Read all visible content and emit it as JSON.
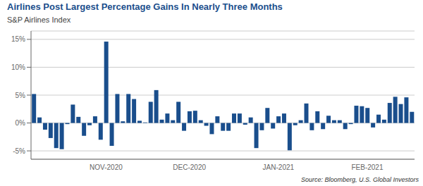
{
  "chart_data": {
    "type": "bar",
    "title": "Airlines Post Largest Percentage Gains In Nearly Three Months",
    "subtitle": "S&P Airlines Index",
    "source": "Source: Bloomberg, U.S. Global Investors",
    "color": "#1a4e8c",
    "categories": [
      null,
      null,
      null,
      null,
      null,
      null,
      null,
      null,
      null,
      null,
      null,
      null,
      null,
      "NOV-2020",
      null,
      null,
      null,
      null,
      null,
      null,
      null,
      null,
      null,
      null,
      null,
      null,
      null,
      null,
      "DEC-2020",
      null,
      null,
      null,
      null,
      null,
      null,
      null,
      null,
      null,
      null,
      null,
      null,
      null,
      null,
      null,
      "JAN-2021",
      null,
      null,
      null,
      null,
      null,
      null,
      null,
      null,
      null,
      null,
      null,
      null,
      null,
      null,
      null,
      "FEB-2021",
      null,
      null,
      null,
      null,
      null,
      null,
      null,
      null
    ],
    "values": [
      5.2,
      1.0,
      -1.2,
      -2.7,
      -4.5,
      -4.7,
      -0.2,
      3.3,
      1.1,
      -2.3,
      -0.4,
      1.2,
      -3.0,
      14.6,
      -4.1,
      5.2,
      0.3,
      5.2,
      4.3,
      0.4,
      0.1,
      3.8,
      5.9,
      0.6,
      1.7,
      0.5,
      3.8,
      -1.4,
      2.1,
      2.2,
      0.5,
      -0.5,
      -2.0,
      1.2,
      -1.4,
      -1.4,
      1.7,
      1.7,
      -0.3,
      1.0,
      -4.5,
      -1.3,
      2.7,
      -1.0,
      1.2,
      1.7,
      -4.9,
      -0.4,
      0.5,
      3.5,
      -1.3,
      2.1,
      -1.1,
      1.3,
      0.5,
      0.5,
      -1.1,
      -0.2,
      3.1,
      3.0,
      2.7,
      -0.8,
      1.5,
      0.6,
      3.6,
      4.7,
      3.4,
      4.6,
      2.0
    ],
    "ylim": [
      -6.5,
      16.5
    ],
    "yticks": [
      {
        "value": -5,
        "label": "-5%"
      },
      {
        "value": 0,
        "label": "0%"
      },
      {
        "value": 5,
        "label": "5%"
      },
      {
        "value": 10,
        "label": "10%"
      },
      {
        "value": 15,
        "label": "15%"
      }
    ],
    "grid": true
  }
}
